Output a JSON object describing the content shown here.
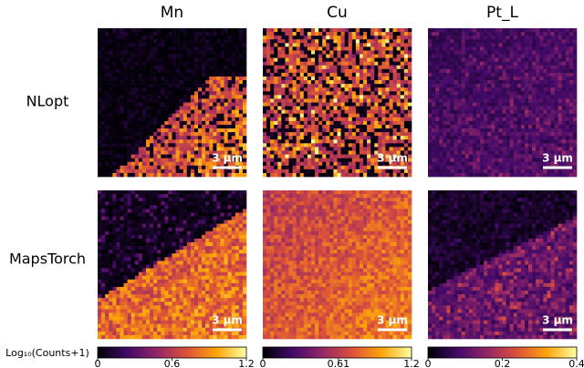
{
  "chart_data": {
    "type": "heatmap",
    "columns": [
      "Mn",
      "Cu",
      "Pt_L"
    ],
    "rows": [
      "NLopt",
      "MapsTorch"
    ],
    "scale_bar": "3 µm",
    "colorbar_label": "Log₁₀(Counts+1)",
    "colormap": "inferno",
    "colorbars": [
      {
        "lim": [
          0,
          1.2
        ],
        "ticks": [
          0,
          0.6,
          1.2
        ]
      },
      {
        "lim": [
          0,
          1.2
        ],
        "ticks": [
          0,
          0.61,
          1.2
        ]
      },
      {
        "lim": [
          0,
          0.4
        ],
        "ticks": [
          0,
          0.2,
          0.4
        ]
      }
    ]
  }
}
